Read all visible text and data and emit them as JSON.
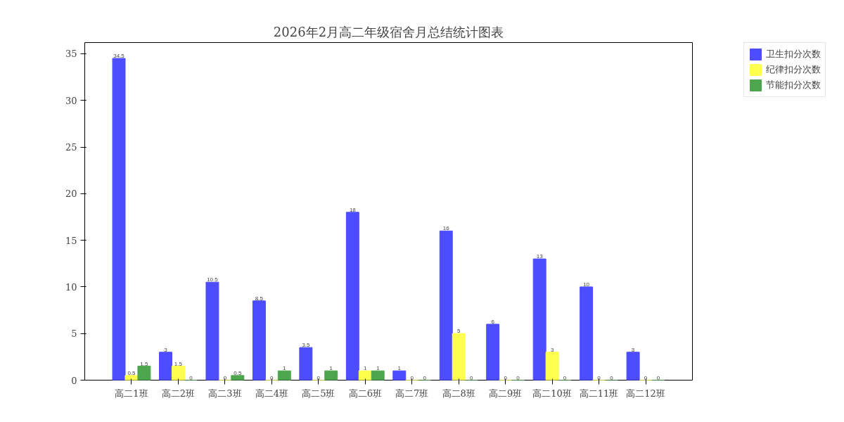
{
  "chart_data": {
    "type": "bar",
    "title": "2026年2月高二年级宿舍月总结统计图表",
    "categories": [
      "高二1班",
      "高二2班",
      "高二3班",
      "高二4班",
      "高二5班",
      "高二6班",
      "高二7班",
      "高二8班",
      "高二9班",
      "高二10班",
      "高二11班",
      "高二12班"
    ],
    "series": [
      {
        "name": "卫生扣分次数",
        "color": "#4d4dff",
        "values": [
          34.5,
          3,
          10.5,
          8.5,
          3.5,
          18,
          1,
          16,
          6,
          13,
          10,
          3
        ]
      },
      {
        "name": "纪律扣分次数",
        "color": "#ffff4d",
        "values": [
          0.5,
          1.5,
          0,
          0,
          0,
          1,
          0,
          5,
          0,
          3,
          0,
          0
        ]
      },
      {
        "name": "节能扣分次数",
        "color": "#4da64d",
        "values": [
          1.5,
          0,
          0.5,
          1,
          1,
          1,
          0,
          0,
          0,
          0,
          0,
          0
        ]
      }
    ],
    "ylim": [
      0,
      36.2
    ],
    "yticks": [
      0,
      5,
      10,
      15,
      20,
      25,
      30,
      35
    ],
    "grid": false,
    "legend": "top right",
    "data_labels": true
  }
}
